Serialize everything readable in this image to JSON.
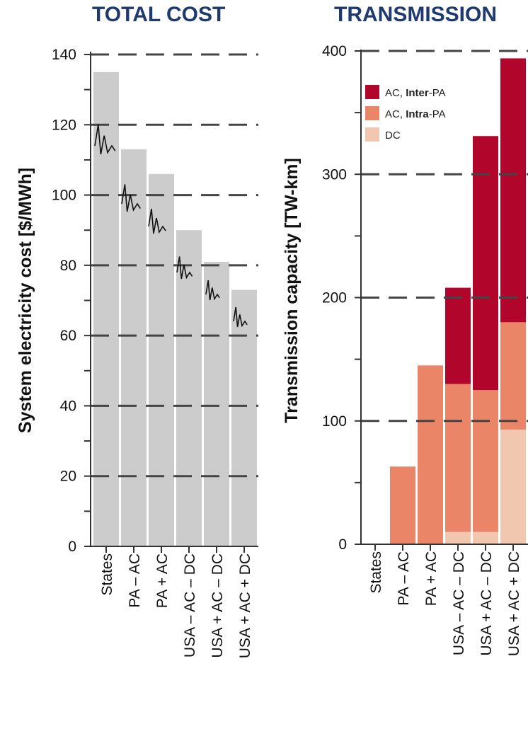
{
  "chart_data": [
    {
      "type": "bar",
      "title": "TOTAL COST",
      "ylabel": "System electricity cost [$/MWh]",
      "xlabel": "",
      "ylim": [
        0,
        140
      ],
      "yticks": [
        0,
        20,
        40,
        60,
        80,
        100,
        120,
        140
      ],
      "grid": true,
      "categories": [
        "States",
        "PA – AC",
        "PA + AC",
        "USA – AC – DC",
        "USA + AC – DC",
        "USA + AC + DC"
      ],
      "values": [
        135,
        113,
        106,
        90,
        81,
        73
      ],
      "colors": {
        "bar": "#cccccc",
        "grid": "#444444"
      },
      "inset_sparklines": true
    },
    {
      "type": "bar",
      "stacked": true,
      "title": "TRANSMISSION",
      "ylabel": "Transmission capacity [TW-km]",
      "xlabel": "",
      "ylim": [
        0,
        400
      ],
      "yticks": [
        0,
        100,
        200,
        300,
        400
      ],
      "grid": true,
      "legend_position": "top-left",
      "categories": [
        "States",
        "PA – AC",
        "PA + AC",
        "USA – AC – DC",
        "USA + AC – DC",
        "USA + AC + DC"
      ],
      "series": [
        {
          "name": "DC",
          "values": [
            0,
            0,
            0,
            10,
            10,
            93
          ],
          "color": "#f2c7b0"
        },
        {
          "name": "AC, Intra-PA",
          "values": [
            0,
            63,
            145,
            120,
            115,
            87
          ],
          "color": "#eb8568"
        },
        {
          "name": "AC, Inter-PA",
          "values": [
            0,
            0,
            0,
            78,
            206,
            214
          ],
          "color": "#b2052b"
        }
      ],
      "legend": [
        {
          "prefix": "AC, ",
          "strong": "Inter",
          "suffix": "-PA",
          "color": "#b2052b"
        },
        {
          "prefix": "AC, ",
          "strong": "Intra",
          "suffix": "-PA",
          "color": "#eb8568"
        },
        {
          "prefix": "DC",
          "strong": "",
          "suffix": "",
          "color": "#f2c7b0"
        }
      ]
    }
  ]
}
